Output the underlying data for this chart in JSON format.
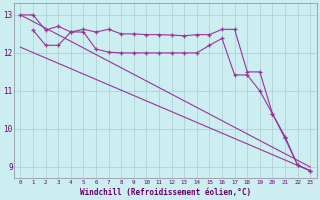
{
  "xlabel": "Windchill (Refroidissement éolien,°C)",
  "background_color": "#cceef0",
  "grid_color": "#aacccc",
  "line_color": "#993399",
  "y_ticks": [
    9,
    10,
    11,
    12,
    13
  ],
  "ylim": [
    8.7,
    13.3
  ],
  "xlim": [
    -0.5,
    23.5
  ],
  "series1_x": [
    0,
    1,
    2,
    3,
    4,
    5,
    6,
    7,
    8,
    9,
    10,
    11,
    12,
    13,
    14,
    15,
    16,
    17,
    18,
    19,
    20,
    21,
    22,
    23
  ],
  "series1_y": [
    13.0,
    13.0,
    12.6,
    12.7,
    12.55,
    12.62,
    12.55,
    12.62,
    12.5,
    12.5,
    12.48,
    12.48,
    12.47,
    12.45,
    12.48,
    12.48,
    12.62,
    12.62,
    11.5,
    11.5,
    10.4,
    9.8,
    9.05,
    8.9
  ],
  "series2_x": [
    1,
    2,
    3,
    4,
    5,
    6,
    7,
    8,
    9,
    10,
    11,
    12,
    13,
    14,
    15,
    16,
    17,
    18,
    19,
    20,
    21,
    22,
    23
  ],
  "series2_y": [
    12.6,
    12.2,
    12.2,
    12.55,
    12.55,
    12.1,
    12.02,
    12.0,
    12.0,
    12.0,
    12.0,
    12.0,
    12.0,
    12.0,
    12.2,
    12.38,
    11.42,
    11.42,
    11.0,
    10.4,
    9.75,
    9.05,
    8.9
  ],
  "series3_x": [
    0,
    23
  ],
  "series3_y": [
    13.0,
    9.0
  ],
  "series4_x": [
    0,
    23
  ],
  "series4_y": [
    12.15,
    8.9
  ]
}
